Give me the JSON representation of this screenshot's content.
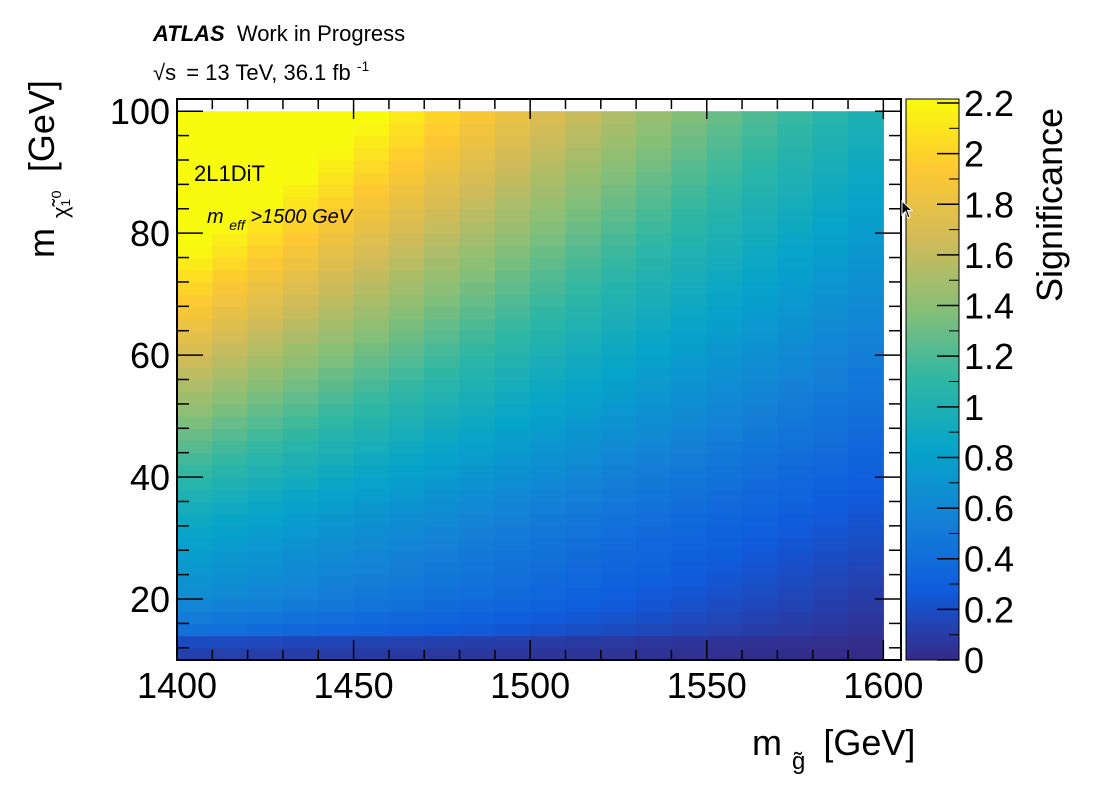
{
  "header": {
    "experiment": "ATLAS",
    "status": "Work in Progress",
    "energy": "= 13 TeV, 36.1 fb",
    "energy_sqrt": "√s",
    "energy_exp": "-1"
  },
  "chart_data": {
    "type": "heatmap",
    "title": "",
    "xlabel": "m [GeV]",
    "xlabel_sub": "g̃",
    "ylabel": "m [GeV]",
    "ylabel_sub": "χ̃₁⁰",
    "zlabel": "Significance",
    "xlim": [
      1400,
      1605
    ],
    "ylim": [
      10,
      102
    ],
    "zlim": [
      0,
      2.2
    ],
    "x_ticks": [
      1400,
      1450,
      1500,
      1550,
      1600
    ],
    "y_ticks": [
      20,
      40,
      60,
      80,
      100
    ],
    "z_ticks": [
      "0",
      "0.2",
      "0.4",
      "0.6",
      "0.8",
      "1",
      "1.2",
      "1.4",
      "1.6",
      "1.8",
      "2",
      "2.2"
    ],
    "x_bins": [
      1400,
      1410,
      1420,
      1430,
      1440,
      1450,
      1460,
      1470,
      1480,
      1490,
      1500,
      1510,
      1520,
      1530,
      1540,
      1550,
      1560,
      1570,
      1580,
      1590,
      1600
    ],
    "y_bins": [
      10,
      12,
      14,
      16,
      18,
      20,
      22,
      24,
      26,
      28,
      30,
      32,
      34,
      36,
      38,
      40,
      42,
      44,
      46,
      48,
      50,
      52,
      54,
      56,
      58,
      60,
      62,
      64,
      66,
      68,
      70,
      72,
      74,
      76,
      78,
      80,
      82,
      84,
      86,
      88,
      90,
      92,
      94,
      96,
      98,
      100
    ],
    "colormap": [
      "#352a87",
      "#0f5cdd",
      "#1481d6",
      "#06a4ca",
      "#2eb7a4",
      "#87bf77",
      "#d1bb59",
      "#fec832",
      "#f9fb0e"
    ],
    "annotations": [
      "2L1DiT",
      "m",
      "eff",
      ">1500 GeV"
    ],
    "grid": false,
    "legend": "none"
  }
}
